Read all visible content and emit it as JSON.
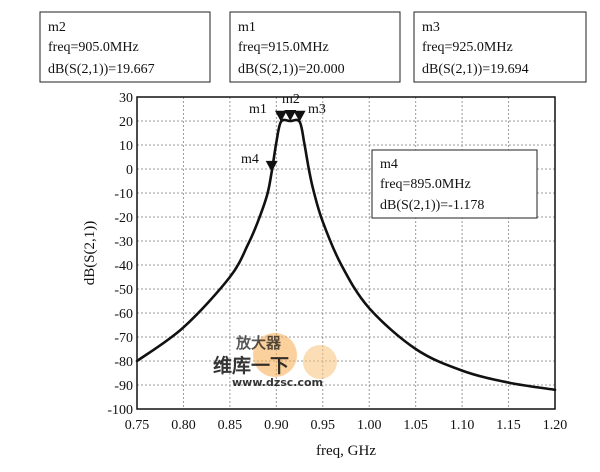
{
  "chart_data": {
    "type": "line",
    "xlabel": "freq, GHz",
    "ylabel": "dB(S(2,1))",
    "xlim": [
      0.75,
      1.2
    ],
    "ylim": [
      -100,
      30
    ],
    "grid": true,
    "x_ticks": [
      "0.75",
      "0.80",
      "0.85",
      "0.90",
      "0.95",
      "1.00",
      "1.05",
      "1.10",
      "1.15",
      "1.20"
    ],
    "y_ticks": [
      "30",
      "20",
      "10",
      "0",
      "-10",
      "-20",
      "-30",
      "-40",
      "-50",
      "-60",
      "-70",
      "-80",
      "-90",
      "-100"
    ],
    "series": [
      {
        "name": "dB(S(2,1))",
        "x": [
          0.75,
          0.8,
          0.85,
          0.87,
          0.88,
          0.89,
          0.895,
          0.9,
          0.905,
          0.915,
          0.925,
          0.93,
          0.935,
          0.94,
          0.95,
          0.97,
          1.0,
          1.05,
          1.1,
          1.15,
          1.2
        ],
        "y": [
          -80,
          -66,
          -45,
          -31,
          -22,
          -11,
          -1.2,
          11,
          19.7,
          20.0,
          19.7,
          11,
          0,
          -9,
          -22,
          -40,
          -58,
          -75,
          -84,
          -89,
          -92
        ]
      }
    ],
    "markers": [
      {
        "name": "m2",
        "freq_text": "freq=905.0MHz",
        "value_text": "dB(S(2,1))=19.667",
        "x": 0.905,
        "y": 19.667
      },
      {
        "name": "m1",
        "freq_text": "freq=915.0MHz",
        "value_text": "dB(S(2,1))=20.000",
        "x": 0.915,
        "y": 20.0
      },
      {
        "name": "m3",
        "freq_text": "freq=925.0MHz",
        "value_text": "dB(S(2,1))=19.694",
        "x": 0.925,
        "y": 19.694
      },
      {
        "name": "m4",
        "freq_text": "freq=895.0MHz",
        "value_text": "dB(S(2,1))=-1.178",
        "x": 0.895,
        "y": -1.178
      }
    ]
  },
  "watermark": {
    "brand": "维库一下",
    "url": "www.dzsc.com",
    "logo_text": "放大器"
  },
  "colors": {
    "curve": "#111111",
    "grid": "#9a9a9a",
    "watermark": "#e8701c"
  }
}
